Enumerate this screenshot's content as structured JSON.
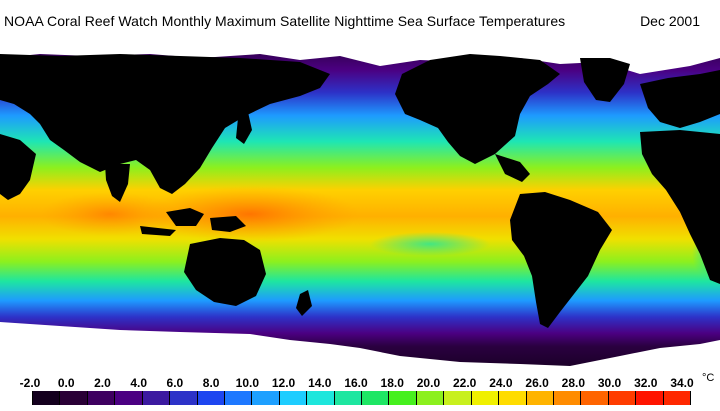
{
  "header": {
    "title": "NOAA Coral Reef Watch Monthly Maximum Satellite Nighttime Sea Surface Temperatures",
    "date": "Dec 2001"
  },
  "map": {
    "projection": "global equirectangular",
    "palette_note_colors": {
      "land": "#000000",
      "ice": "#ffffff"
    }
  },
  "legend": {
    "unit": "°C",
    "ticks": [
      "-2.0",
      "0.0",
      "2.0",
      "4.0",
      "6.0",
      "8.0",
      "10.0",
      "12.0",
      "14.0",
      "16.0",
      "18.0",
      "20.0",
      "22.0",
      "24.0",
      "26.0",
      "28.0",
      "30.0",
      "32.0",
      "34.0"
    ],
    "colors": [
      "#14001e",
      "#2a0036",
      "#3e0060",
      "#4b0082",
      "#3c1aa0",
      "#2d32c8",
      "#1e46f0",
      "#1e78ff",
      "#1ea0ff",
      "#1ecdff",
      "#1ee6dc",
      "#1ee6a0",
      "#1ee664",
      "#46f01e",
      "#8cf01e",
      "#c8f01e",
      "#f0f000",
      "#ffdc00",
      "#ffb400",
      "#ff8c00",
      "#ff6400",
      "#ff3c00",
      "#ff1400",
      "#ff2800"
    ]
  }
}
